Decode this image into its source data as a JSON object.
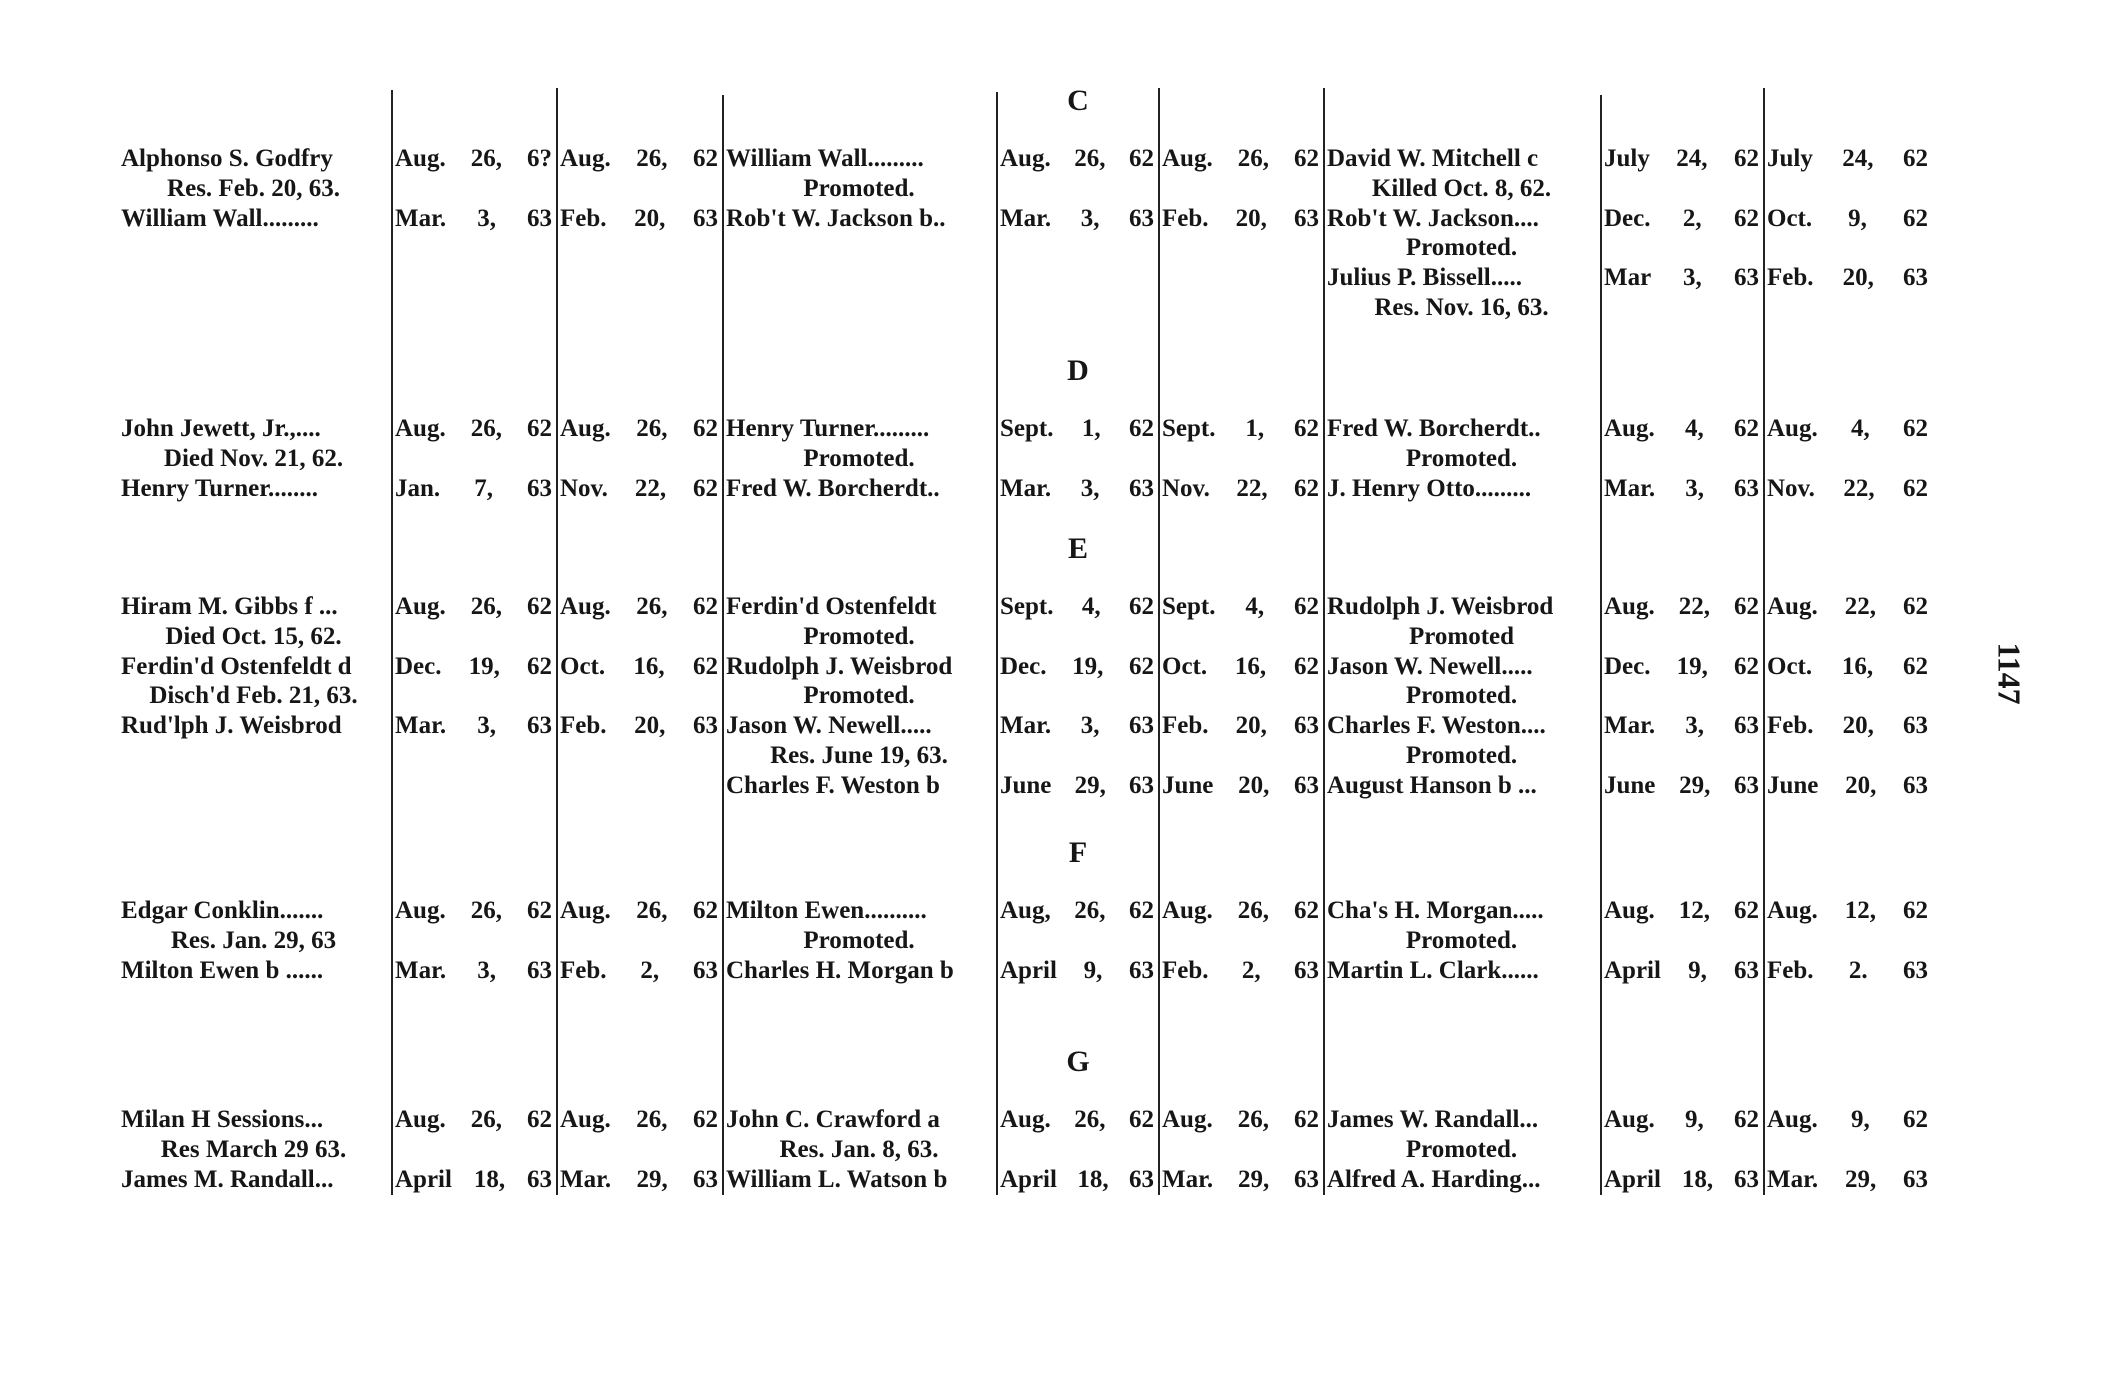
{
  "page_number": "1147",
  "sections": [
    {
      "letter": "C",
      "rows": [
        [
          "Alphonso S. Godfry",
          "Aug. 26, 6?",
          "Aug. 26, 62",
          "William Wall.........",
          "Aug. 26, 62",
          "Aug. 26, 62",
          "David W. Mitchell c",
          "July 24, 62",
          "July 24, 62"
        ],
        [
          "Res. Feb. 20, 63.",
          "",
          "",
          "Promoted.",
          "",
          "",
          "Killed Oct. 8, 62.",
          "",
          ""
        ],
        [
          "William Wall.........",
          "Mar. 3, 63",
          "Feb. 20, 63",
          "Rob't W. Jackson b..",
          "Mar. 3, 63",
          "Feb. 20, 63",
          "Rob't W. Jackson....",
          "Dec. 2, 62",
          "Oct. 9, 62"
        ],
        [
          "",
          "",
          "",
          "",
          "",
          "",
          "Promoted.",
          "",
          ""
        ],
        [
          "",
          "",
          "",
          "",
          "",
          "",
          "Julius P. Bissell.....",
          "Mar 3, 63",
          "Feb. 20, 63"
        ],
        [
          "",
          "",
          "",
          "",
          "",
          "",
          "Res. Nov. 16, 63.",
          "",
          ""
        ]
      ]
    },
    {
      "letter": "D",
      "rows": [
        [
          "John Jewett, Jr.,....",
          "Aug. 26, 62",
          "Aug. 26, 62",
          "Henry Turner.........",
          "Sept. 1, 62",
          "Sept. 1, 62",
          "Fred W. Borcherdt..",
          "Aug. 4, 62",
          "Aug. 4, 62"
        ],
        [
          "Died Nov. 21, 62.",
          "",
          "",
          "Promoted.",
          "",
          "",
          "Promoted.",
          "",
          ""
        ],
        [
          "Henry Turner........",
          "Jan. 7, 63",
          "Nov. 22, 62",
          "Fred W. Borcherdt..",
          "Mar. 3, 63",
          "Nov. 22, 62",
          "J. Henry Otto.........",
          "Mar. 3, 63",
          "Nov. 22, 62"
        ]
      ]
    },
    {
      "letter": "E",
      "rows": [
        [
          "Hiram M. Gibbs f ...",
          "Aug. 26, 62",
          "Aug. 26, 62",
          "Ferdin'd Ostenfeldt",
          "Sept. 4, 62",
          "Sept. 4, 62",
          "Rudolph J. Weisbrod",
          "Aug. 22, 62",
          "Aug. 22, 62"
        ],
        [
          "Died Oct. 15, 62.",
          "",
          "",
          "Promoted.",
          "",
          "",
          "Promoted",
          "",
          ""
        ],
        [
          "Ferdin'd Ostenfeldt d",
          "Dec. 19, 62",
          "Oct. 16, 62",
          "Rudolph J. Weisbrod",
          "Dec. 19, 62",
          "Oct. 16, 62",
          "Jason W. Newell.....",
          "Dec. 19, 62",
          "Oct. 16, 62"
        ],
        [
          "Disch'd Feb. 21, 63.",
          "",
          "",
          "Promoted.",
          "",
          "",
          "Promoted.",
          "",
          ""
        ],
        [
          "Rud'lph J. Weisbrod",
          "Mar. 3, 63",
          "Feb. 20, 63",
          "Jason W. Newell.....",
          "Mar. 3, 63",
          "Feb. 20, 63",
          "Charles F. Weston....",
          "Mar. 3, 63",
          "Feb. 20, 63"
        ],
        [
          "",
          "",
          "",
          "Res. June 19, 63.",
          "",
          "",
          "Promoted.",
          "",
          ""
        ],
        [
          "",
          "",
          "",
          "Charles F. Weston b",
          "June 29, 63",
          "June 20, 63",
          "August Hanson b ...",
          "June 29, 63",
          "June 20, 63"
        ]
      ]
    },
    {
      "letter": "F",
      "rows": [
        [
          "Edgar Conklin.......",
          "Aug. 26, 62",
          "Aug. 26, 62",
          "Milton Ewen..........",
          "Aug, 26, 62",
          "Aug. 26, 62",
          "Cha's H. Morgan.....",
          "Aug. 12, 62",
          "Aug. 12, 62"
        ],
        [
          "Res. Jan. 29, 63",
          "",
          "",
          "Promoted.",
          "",
          "",
          "Promoted.",
          "",
          ""
        ],
        [
          "Milton Ewen b ......",
          "Mar. 3, 63",
          "Feb. 2, 63",
          "Charles H. Morgan b",
          "April 9, 63",
          "Feb. 2, 63",
          "Martin L. Clark......",
          "April 9, 63",
          "Feb. 2. 63"
        ]
      ]
    },
    {
      "letter": "G",
      "rows": [
        [
          "Milan H Sessions...",
          "Aug. 26, 62",
          "Aug. 26, 62",
          "John C. Crawford a",
          "Aug. 26, 62",
          "Aug. 26, 62",
          "James W. Randall...",
          "Aug. 9, 62",
          "Aug. 9, 62"
        ],
        [
          "Res March 29 63.",
          "",
          "",
          "Res. Jan. 8, 63.",
          "",
          "",
          "Promoted.",
          "",
          ""
        ],
        [
          "James M. Randall...",
          "April 18, 63",
          "Mar. 29, 63",
          "William L. Watson b",
          "April 18, 63",
          "Mar. 29, 63",
          "Alfred A. Harding...",
          "April 18, 63",
          "Mar. 29, 63"
        ]
      ]
    }
  ]
}
